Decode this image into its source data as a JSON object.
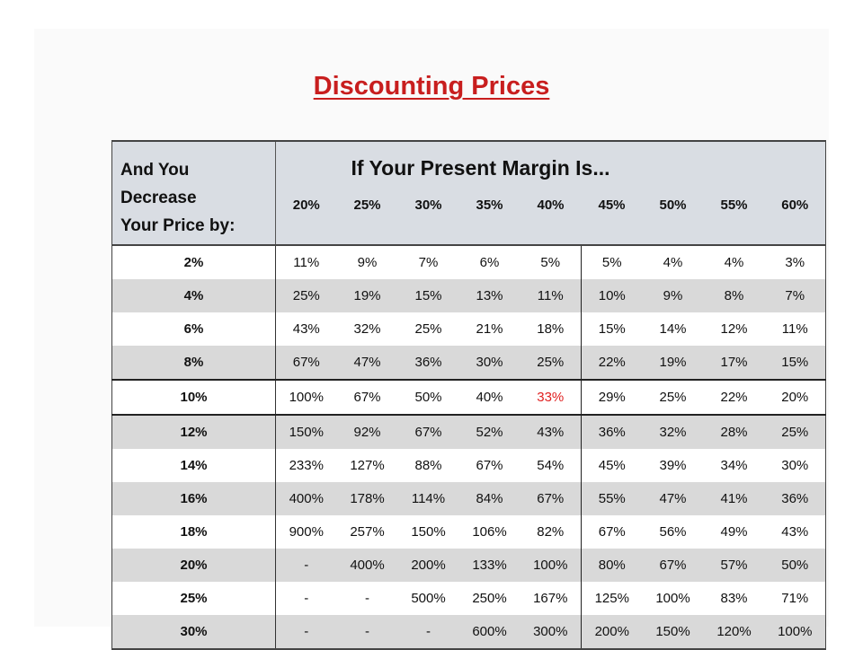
{
  "title": "Discounting Prices",
  "header": {
    "row_label_line1": "And You",
    "row_label_line2": "Decrease",
    "row_label_line3": "Your Price by:",
    "group_label": "If Your Present Margin Is...",
    "margins": [
      "20%",
      "25%",
      "30%",
      "35%",
      "40%",
      "45%",
      "50%",
      "55%",
      "60%"
    ]
  },
  "rows": [
    {
      "decrease": "2%",
      "values": [
        "11%",
        "9%",
        "7%",
        "6%",
        "5%",
        "5%",
        "4%",
        "4%",
        "3%"
      ]
    },
    {
      "decrease": "4%",
      "values": [
        "25%",
        "19%",
        "15%",
        "13%",
        "11%",
        "10%",
        "9%",
        "8%",
        "7%"
      ]
    },
    {
      "decrease": "6%",
      "values": [
        "43%",
        "32%",
        "25%",
        "21%",
        "18%",
        "15%",
        "14%",
        "12%",
        "11%"
      ]
    },
    {
      "decrease": "8%",
      "values": [
        "67%",
        "47%",
        "36%",
        "30%",
        "25%",
        "22%",
        "19%",
        "17%",
        "15%"
      ]
    },
    {
      "decrease": "10%",
      "values": [
        "100%",
        "67%",
        "50%",
        "40%",
        "33%",
        "29%",
        "25%",
        "22%",
        "20%"
      ]
    },
    {
      "decrease": "12%",
      "values": [
        "150%",
        "92%",
        "67%",
        "52%",
        "43%",
        "36%",
        "32%",
        "28%",
        "25%"
      ]
    },
    {
      "decrease": "14%",
      "values": [
        "233%",
        "127%",
        "88%",
        "67%",
        "54%",
        "45%",
        "39%",
        "34%",
        "30%"
      ]
    },
    {
      "decrease": "16%",
      "values": [
        "400%",
        "178%",
        "114%",
        "84%",
        "67%",
        "55%",
        "47%",
        "41%",
        "36%"
      ]
    },
    {
      "decrease": "18%",
      "values": [
        "900%",
        "257%",
        "150%",
        "106%",
        "82%",
        "67%",
        "56%",
        "49%",
        "43%"
      ]
    },
    {
      "decrease": "20%",
      "values": [
        "-",
        "400%",
        "200%",
        "133%",
        "100%",
        "80%",
        "67%",
        "57%",
        "50%"
      ]
    },
    {
      "decrease": "25%",
      "values": [
        "-",
        "-",
        "500%",
        "250%",
        "167%",
        "125%",
        "100%",
        "83%",
        "71%"
      ]
    },
    {
      "decrease": "30%",
      "values": [
        "-",
        "-",
        "-",
        "600%",
        "300%",
        "200%",
        "150%",
        "120%",
        "100%"
      ]
    }
  ],
  "highlight": {
    "row": 4,
    "col": 4,
    "color": "#e02020"
  },
  "colors": {
    "title": "#c81e1e",
    "header_bg": "#d9dde3",
    "stripe": "#d9d9d9"
  }
}
